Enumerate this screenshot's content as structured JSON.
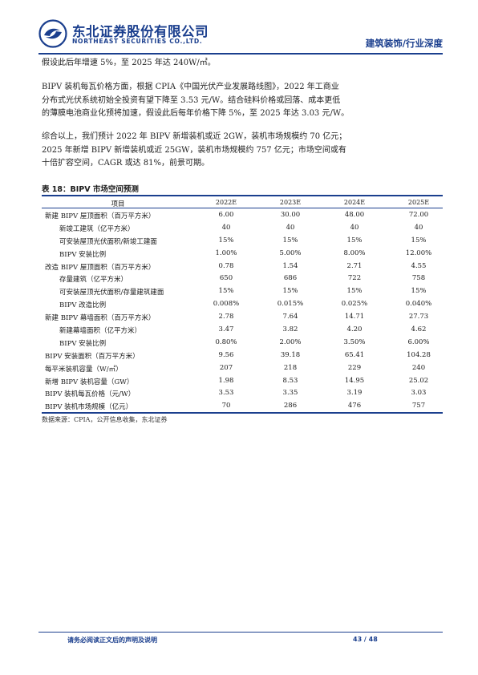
{
  "header": {
    "company_cn": "东北证券股份有限公司",
    "company_en": "NORTHEAST SECURITIES CO.,LTD.",
    "section": "建筑装饰/行业深度",
    "brand_color": "#1b3f8e"
  },
  "paragraphs": [
    [
      "假设此后年增速 5%，至 2025 年达 240W/㎡。"
    ],
    [
      "BIPV 装机每瓦价格方面，根据 CPIA《中国光伏产业发展路线图》，2022 年工商业",
      "分布式光伏系统初始全投资有望下降至 3.53 元/W。结合硅料价格或回落、成本更低",
      "的薄膜电池商业化预将加速，假设此后每年价格下降 5%，至 2025 年达 3.03 元/W。"
    ],
    [
      "综合以上，我们预计 2022 年 BIPV 新增装机或近 2GW，装机市场规模约 70 亿元；",
      "2025 年新增 BIPV 新增装机或近 25GW，装机市场规模约 757 亿元；市场空间或有",
      "十倍扩容空间，CAGR 或达 81%，前景可期。"
    ]
  ],
  "table": {
    "title": "表 18：BIPV 市场空间预测",
    "headers": [
      "项目",
      "2022E",
      "2023E",
      "2024E",
      "2025E"
    ],
    "rows": [
      {
        "label": "新建 BIPV 屋顶面积（百万平方米）",
        "indent": false,
        "values": [
          "6.00",
          "30.00",
          "48.00",
          "72.00"
        ]
      },
      {
        "label": "新竣工建筑（亿平方米）",
        "indent": true,
        "values": [
          "40",
          "40",
          "40",
          "40"
        ]
      },
      {
        "label": "可安装屋顶光伏面积/新竣工建面",
        "indent": true,
        "values": [
          "15%",
          "15%",
          "15%",
          "15%"
        ]
      },
      {
        "label": "BIPV 安装比例",
        "indent": true,
        "values": [
          "1.00%",
          "5.00%",
          "8.00%",
          "12.00%"
        ]
      },
      {
        "label": "改造 BIPV 屋顶面积（百万平方米）",
        "indent": false,
        "values": [
          "0.78",
          "1.54",
          "2.71",
          "4.55"
        ]
      },
      {
        "label": "存量建筑（亿平方米）",
        "indent": true,
        "values": [
          "650",
          "686",
          "722",
          "758"
        ]
      },
      {
        "label": "可安装屋顶光伏面积/存量建筑建面",
        "indent": true,
        "values": [
          "15%",
          "15%",
          "15%",
          "15%"
        ]
      },
      {
        "label": "BIPV 改造比例",
        "indent": true,
        "values": [
          "0.008%",
          "0.015%",
          "0.025%",
          "0.040%"
        ]
      },
      {
        "label": "新建 BIPV 幕墙面积（百万平方米）",
        "indent": false,
        "values": [
          "2.78",
          "7.64",
          "14.71",
          "27.73"
        ]
      },
      {
        "label": "新建幕墙面积（亿平方米）",
        "indent": true,
        "values": [
          "3.47",
          "3.82",
          "4.20",
          "4.62"
        ]
      },
      {
        "label": "BIPV 安装比例",
        "indent": true,
        "values": [
          "0.80%",
          "2.00%",
          "3.50%",
          "6.00%"
        ]
      },
      {
        "label": "BIPV 安装面积（百万平方米）",
        "indent": false,
        "values": [
          "9.56",
          "39.18",
          "65.41",
          "104.28"
        ]
      },
      {
        "label": "每平米装机容量（W/㎡）",
        "indent": false,
        "values": [
          "207",
          "218",
          "229",
          "240"
        ]
      },
      {
        "label": "新增 BIPV 装机容量（GW）",
        "indent": false,
        "values": [
          "1.98",
          "8.53",
          "14.95",
          "25.02"
        ]
      },
      {
        "label": "BIPV 装机每瓦价格（元/W）",
        "indent": false,
        "values": [
          "3.53",
          "3.35",
          "3.19",
          "3.03"
        ]
      },
      {
        "label": "BIPV 装机市场规模（亿元）",
        "indent": false,
        "values": [
          "70",
          "286",
          "476",
          "757"
        ]
      }
    ],
    "source": "数据来源：CPIA，公开信息收集，东北证券"
  },
  "footer": {
    "disclaimer": "请务必阅读正文后的声明及说明",
    "page": "43 / 48"
  }
}
